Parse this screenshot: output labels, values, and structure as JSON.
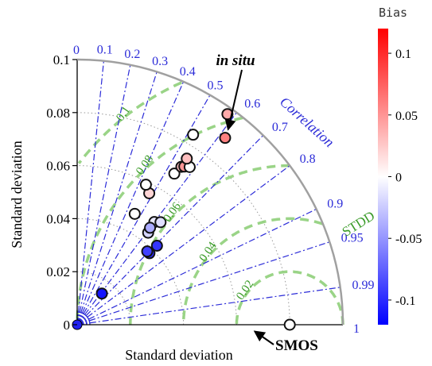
{
  "chart_data": {
    "type": "scatter",
    "subtype": "taylor-diagram",
    "ylabel": "Standard deviation",
    "xlabel": "Standard deviation",
    "sd_max": 0.1,
    "sd_ticks": [
      "0",
      "0.02",
      "0.04",
      "0.06",
      "0.08",
      "0.1"
    ],
    "correlation_label": "Correlation",
    "correlation_ticks": [
      "0",
      "0.1",
      "0.2",
      "0.3",
      "0.4",
      "0.5",
      "0.6",
      "0.7",
      "0.8",
      "0.9",
      "0.95",
      "0.99",
      "1"
    ],
    "correlation_values": [
      0,
      0.1,
      0.2,
      0.3,
      0.4,
      0.5,
      0.6,
      0.7,
      0.8,
      0.9,
      0.95,
      0.99,
      1
    ],
    "stdd_label": "STDD",
    "stdd_ticks": [
      "0.02",
      "0.04",
      "0.06",
      "0.08",
      "0.1"
    ],
    "stdd_values": [
      0.02,
      0.04,
      0.06,
      0.08,
      0.1
    ],
    "reference": {
      "name": "SMOS",
      "sd": 0.08
    },
    "annotation": "in situ",
    "colorbar": {
      "title": "Bias",
      "ticks": [
        "0.1",
        "0.05",
        "0",
        "-0.05",
        "-0.1"
      ],
      "tick_values": [
        0.1,
        0.05,
        0,
        -0.05,
        -0.1
      ],
      "range": [
        -0.12,
        0.12
      ],
      "colors": {
        "negative": "#0000ff",
        "zero": "#ffffff",
        "positive": "#ff0000"
      }
    },
    "points": [
      {
        "sd": 0.015,
        "corr": 0.62,
        "bias": -0.11
      },
      {
        "sd": 0.0383,
        "corr": 0.71,
        "bias": -0.1
      },
      {
        "sd": 0.0423,
        "corr": 0.71,
        "bias": -0.095
      },
      {
        "sd": 0.0382,
        "corr": 0.69,
        "bias": -0.09
      },
      {
        "sd": 0.0438,
        "corr": 0.61,
        "bias": -0.02
      },
      {
        "sd": 0.0484,
        "corr": 0.6,
        "bias": -0.01
      },
      {
        "sd": 0.0498,
        "corr": 0.63,
        "bias": -0.015
      },
      {
        "sd": 0.0457,
        "corr": 0.6,
        "bias": -0.04
      },
      {
        "sd": 0.0471,
        "corr": 0.46,
        "bias": 0.0
      },
      {
        "sd": 0.0565,
        "corr": 0.48,
        "bias": 0.02
      },
      {
        "sd": 0.0588,
        "corr": 0.44,
        "bias": 0.0
      },
      {
        "sd": 0.0677,
        "corr": 0.54,
        "bias": 0.0
      },
      {
        "sd": 0.0713,
        "corr": 0.55,
        "bias": 0.03
      },
      {
        "sd": 0.072,
        "corr": 0.56,
        "bias": 0.05
      },
      {
        "sd": 0.073,
        "corr": 0.58,
        "bias": 0.0
      },
      {
        "sd": 0.075,
        "corr": 0.55,
        "bias": 0.03
      },
      {
        "sd": 0.0839,
        "corr": 0.52,
        "bias": 0.0
      },
      {
        "sd": 0.0898,
        "corr": 0.62,
        "bias": 0.06
      },
      {
        "sd": 0.0975,
        "corr": 0.58,
        "bias": 0.04
      }
    ]
  }
}
